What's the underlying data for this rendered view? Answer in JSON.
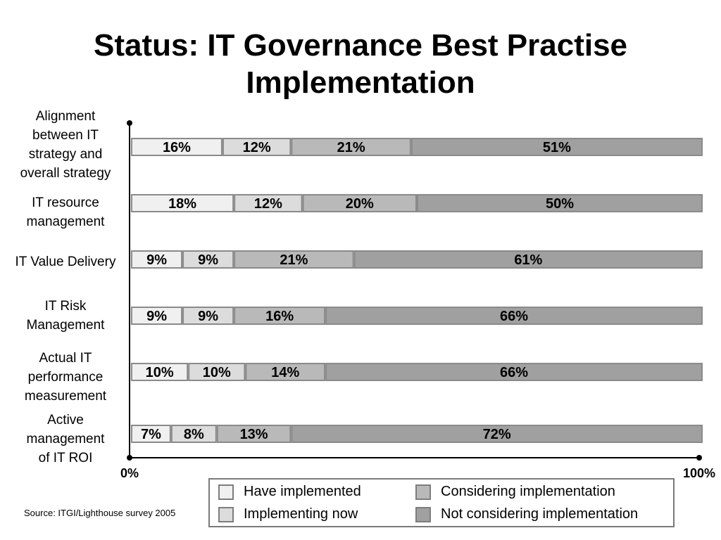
{
  "title_lines": [
    "Status: IT Governance Best Practise",
    "Implementation"
  ],
  "source": "Source: ITGI/Lighthouse survey 2005",
  "colors": {
    "have_implemented": "#f0f0f0",
    "implementing_now": "#dcdcdc",
    "considering_implementation": "#b9b9b9",
    "not_considering_implementation": "#a0a0a0",
    "segment_border": "#8a8a8a",
    "axis": "#000000"
  },
  "chart_data": {
    "type": "bar",
    "orientation": "horizontal",
    "stacked": true,
    "percent_stacked": true,
    "title": "Status: IT Governance Best Practise Implementation",
    "categories": [
      "Alignment between IT strategy and overall strategy",
      "IT resource management",
      "IT Value Delivery",
      "IT Risk Management",
      "Actual IT performance measurement",
      "Active management of  IT ROI"
    ],
    "category_label_lines": [
      [
        "Alignment",
        "between IT",
        "strategy and",
        "overall strategy"
      ],
      [
        "IT resource",
        "management"
      ],
      [
        "IT Value Delivery"
      ],
      [
        "IT Risk",
        "Management"
      ],
      [
        "Actual IT",
        "performance",
        "measurement"
      ],
      [
        "Active",
        "management",
        "of  IT ROI"
      ]
    ],
    "series": [
      {
        "name": "Have implemented",
        "color": "#f0f0f0",
        "values": [
          16,
          18,
          9,
          9,
          10,
          7
        ]
      },
      {
        "name": "Implementing now",
        "color": "#dcdcdc",
        "values": [
          12,
          12,
          9,
          9,
          10,
          8
        ]
      },
      {
        "name": "Considering implementation",
        "color": "#b9b9b9",
        "values": [
          21,
          20,
          21,
          16,
          14,
          13
        ]
      },
      {
        "name": "Not considering implementation",
        "color": "#a0a0a0",
        "values": [
          51,
          50,
          61,
          66,
          66,
          72
        ]
      }
    ],
    "data_labels": [
      [
        "16%",
        "12%",
        "21%",
        "51%"
      ],
      [
        "18%",
        "12%",
        "20%",
        "50%"
      ],
      [
        "9%",
        "9%",
        "21%",
        "61%"
      ],
      [
        "9%",
        "9%",
        "16%",
        "66%"
      ],
      [
        "10%",
        "10%",
        "14%",
        "66%"
      ],
      [
        "7%",
        "8%",
        "13%",
        "72%"
      ]
    ],
    "xlim": [
      0,
      100
    ],
    "x_tick_labels": [
      "0%",
      "100%"
    ],
    "legend_position": "bottom",
    "grid": false
  }
}
